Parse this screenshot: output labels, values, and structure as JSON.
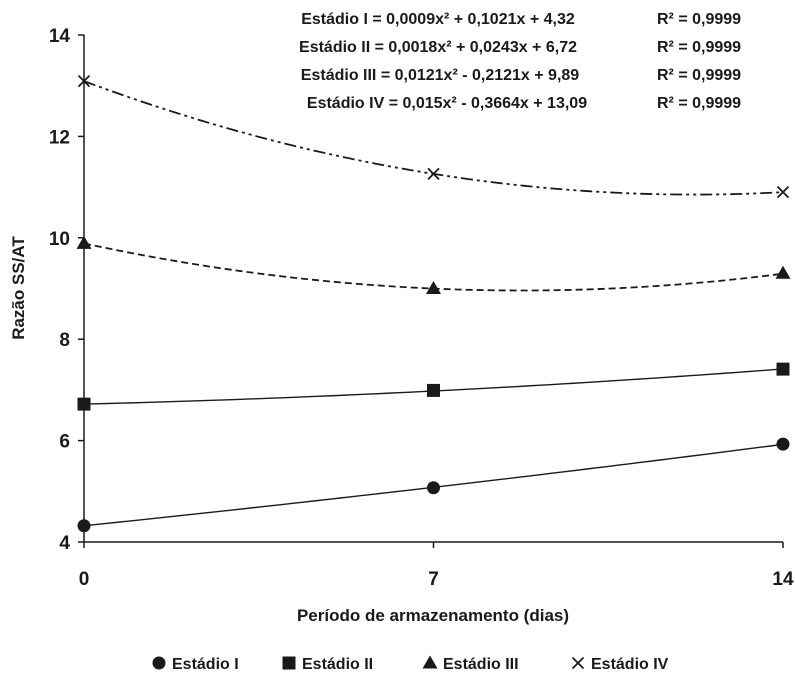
{
  "chart_data": {
    "type": "line",
    "title": "",
    "xlabel": "Período de armazenamento (dias)",
    "ylabel": "Razão SS/AT",
    "x": [
      0,
      7,
      14
    ],
    "x_ticks": [
      "0",
      "7",
      "14"
    ],
    "xlim": [
      0,
      14
    ],
    "ylim": [
      4,
      14
    ],
    "y_ticks": [
      "4",
      "6",
      "8",
      "10",
      "12",
      "14"
    ],
    "grid": false,
    "legend_position": "bottom",
    "series": [
      {
        "name": "Estádio I",
        "values": [
          4.32,
          5.07,
          5.93
        ],
        "marker": "circle",
        "line_style": "solid",
        "color": "#1a1a1a",
        "equation": "Estádio I = 0,0009x² + 0,1021x + 4,32",
        "r2": "R² = 0,9999",
        "coefficients": [
          0.0009,
          0.1021,
          4.32
        ]
      },
      {
        "name": "Estádio II",
        "values": [
          6.72,
          6.99,
          7.41
        ],
        "marker": "square",
        "line_style": "solid",
        "color": "#1a1a1a",
        "equation": "Estádio II = 0,0018x² + 0,0243x + 6,72",
        "r2": "R² = 0,9999",
        "coefficients": [
          0.0018,
          0.0243,
          6.72
        ]
      },
      {
        "name": "Estádio III",
        "values": [
          9.89,
          9.0,
          9.3
        ],
        "marker": "triangle",
        "line_style": "dashed",
        "color": "#1a1a1a",
        "equation": "Estádio III = 0,0121x² - 0,2121x + 9,89",
        "r2": "R² = 0,9999",
        "coefficients": [
          0.0121,
          -0.2121,
          9.89
        ]
      },
      {
        "name": "Estádio IV",
        "values": [
          13.09,
          11.26,
          10.9
        ],
        "marker": "x",
        "line_style": "dash-dot",
        "color": "#1a1a1a",
        "equation": "Estádio IV = 0,015x² - 0,3664x + 13,09",
        "r2": "R² = 0,9999",
        "coefficients": [
          0.015,
          -0.3664,
          13.09
        ]
      }
    ]
  }
}
